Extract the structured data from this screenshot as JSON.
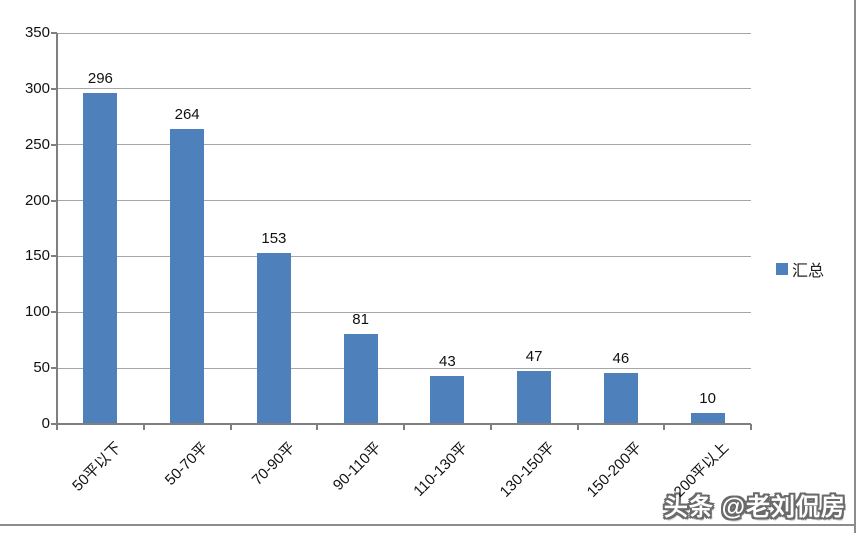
{
  "chart_data": {
    "type": "bar",
    "title": "",
    "categories": [
      "50平以下",
      "50-70平",
      "70-90平",
      "90-110平",
      "110-130平",
      "130-150平",
      "150-200平",
      "200平以上"
    ],
    "series": [
      {
        "name": "汇总",
        "values": [
          296,
          264,
          153,
          81,
          43,
          47,
          46,
          10
        ]
      }
    ],
    "xlabel": "",
    "ylabel": "",
    "ylim": [
      0,
      350
    ],
    "yticks": [
      0,
      50,
      100,
      150,
      200,
      250,
      300,
      350
    ],
    "grid": true,
    "legend_position": "right",
    "bar_color": "#4e80bc",
    "gridline_color": "#a6a6a6",
    "axis_color": "#7f7f7f",
    "label_color": "#111111"
  },
  "legend": {
    "label": "汇总",
    "swatch_color": "#4e80bc"
  },
  "watermark": {
    "text": "头条 @老刘侃房"
  }
}
